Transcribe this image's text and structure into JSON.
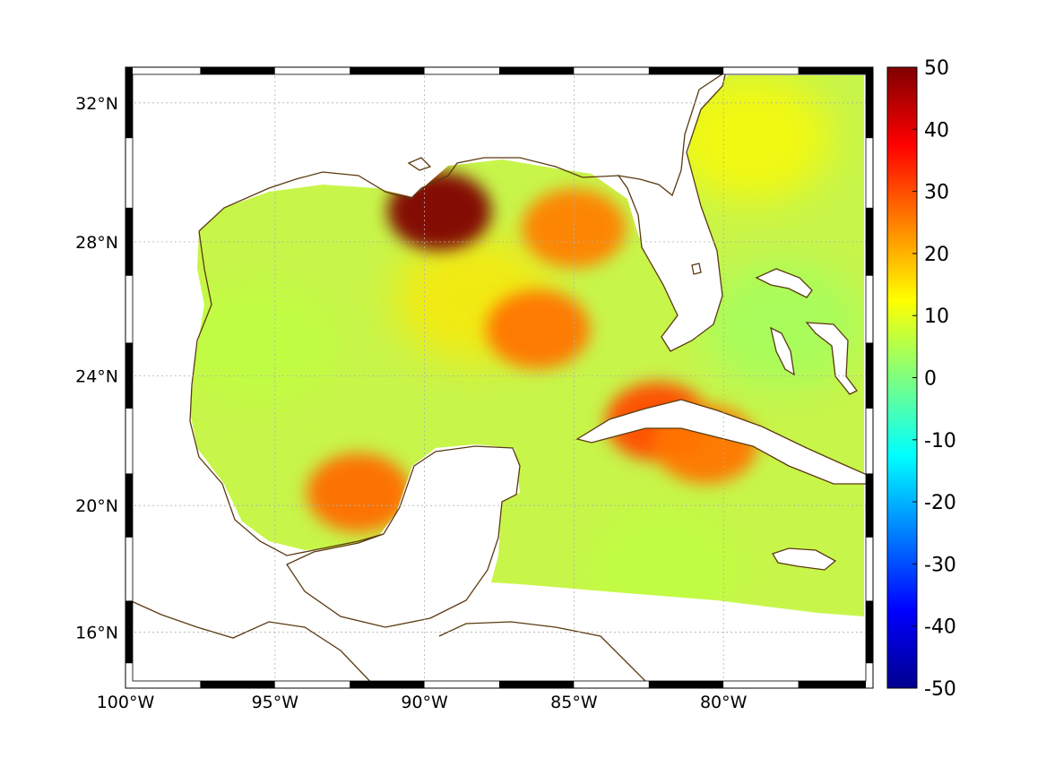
{
  "map": {
    "projection": "mercator",
    "lon_range_deg_east": [
      -100,
      -75
    ],
    "lat_range_deg_north": [
      14.2,
      33
    ],
    "x_tick_labels": [
      {
        "lon": -100,
        "label": "100°W"
      },
      {
        "lon": -95,
        "label": "95°W"
      },
      {
        "lon": -90,
        "label": "90°W"
      },
      {
        "lon": -85,
        "label": "85°W"
      },
      {
        "lon": -80,
        "label": "80°W"
      }
    ],
    "y_tick_labels": [
      {
        "lat": 32,
        "label": "32°N"
      },
      {
        "lat": 28,
        "label": "28°N"
      },
      {
        "lat": 24,
        "label": "24°N"
      },
      {
        "lat": 20,
        "label": "20°N"
      },
      {
        "lat": 16,
        "label": "16°N"
      }
    ],
    "grid": "dotted",
    "frame": "alternating black-white border",
    "coastline_color": "#5a3a10",
    "ocean_no_data_color": "#ffffff"
  },
  "colorbar": {
    "colormap": "jet",
    "min": -50,
    "max": 50,
    "tick_labels": [
      "50",
      "40",
      "30",
      "20",
      "10",
      "0",
      "-10",
      "-20",
      "-30",
      "-40",
      "-50"
    ]
  },
  "field_features": [
    {
      "name": "mississippi-plume",
      "lon": -89.5,
      "lat": 28.9,
      "value": 52
    },
    {
      "name": "northeast-gulf-warm",
      "lon": -85.0,
      "lat": 28.4,
      "value": 25
    },
    {
      "name": "loop-current",
      "lon": -86.2,
      "lat": 25.4,
      "value": 26
    },
    {
      "name": "campeche-bay",
      "lon": -92.2,
      "lat": 20.4,
      "value": 27
    },
    {
      "name": "cuba-north",
      "lon": -82.2,
      "lat": 22.6,
      "value": 30
    },
    {
      "name": "cuba-central",
      "lon": -80.6,
      "lat": 21.9,
      "value": 26
    },
    {
      "name": "west-florida-shelf",
      "lon": -88.3,
      "lat": 26.3,
      "value": 15
    },
    {
      "name": "atlantic-east-florida",
      "lon": -79.1,
      "lat": 31.0,
      "value": 13
    },
    {
      "name": "western-gulf",
      "lon": -95.5,
      "lat": 25.0,
      "value": 6
    },
    {
      "name": "caribbean",
      "lon": -82.0,
      "lat": 18.0,
      "value": 6
    },
    {
      "name": "bahamas",
      "lon": -78.0,
      "lat": 25.5,
      "value": 3
    }
  ]
}
